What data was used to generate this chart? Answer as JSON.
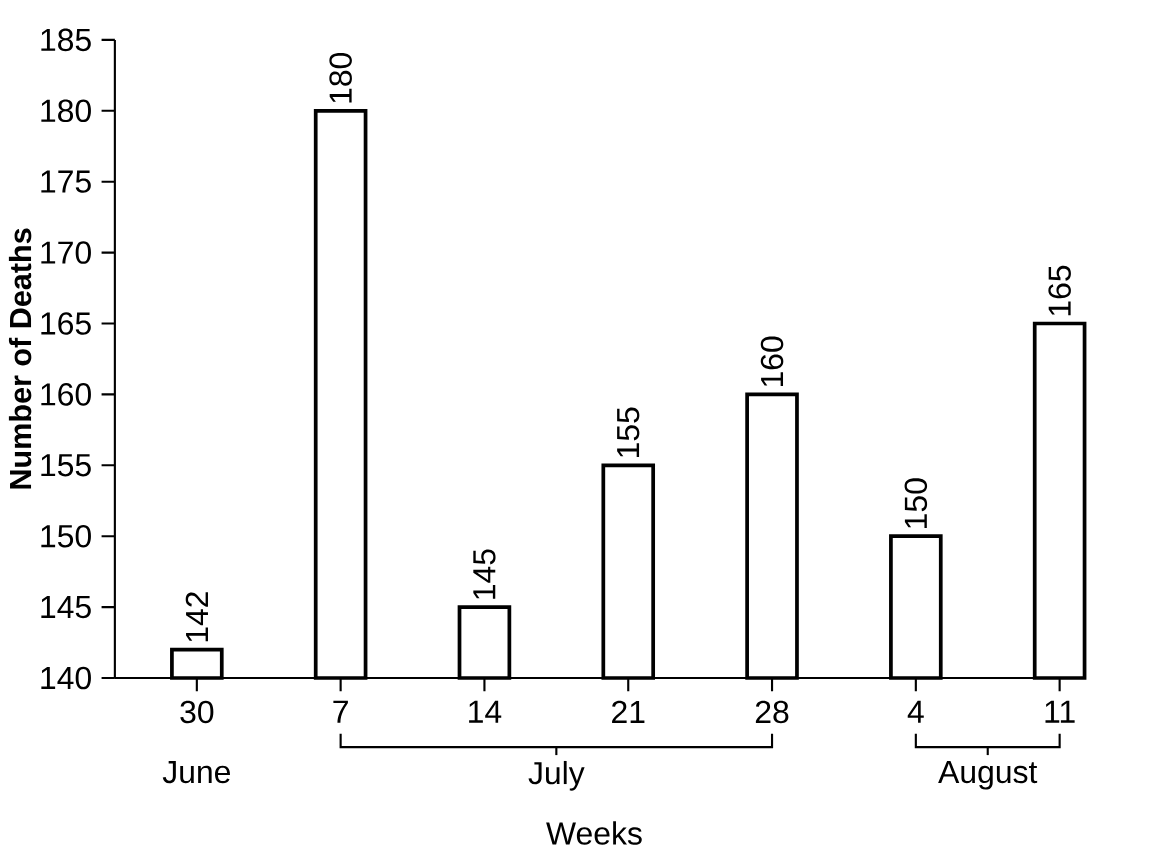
{
  "chart_data": {
    "type": "bar",
    "xlabel": "Weeks",
    "ylabel": "Number of Deaths",
    "categories": [
      "30",
      "7",
      "14",
      "21",
      "28",
      "4",
      "11"
    ],
    "values": [
      142,
      180,
      145,
      155,
      160,
      150,
      165
    ],
    "color": "#ffffff",
    "ylim": [
      140,
      185
    ],
    "yticks": [
      140,
      145,
      150,
      155,
      160,
      165,
      170,
      175,
      180,
      185
    ],
    "data_labels": true,
    "grid": false,
    "annotations": [
      "June",
      "July",
      "August"
    ]
  }
}
